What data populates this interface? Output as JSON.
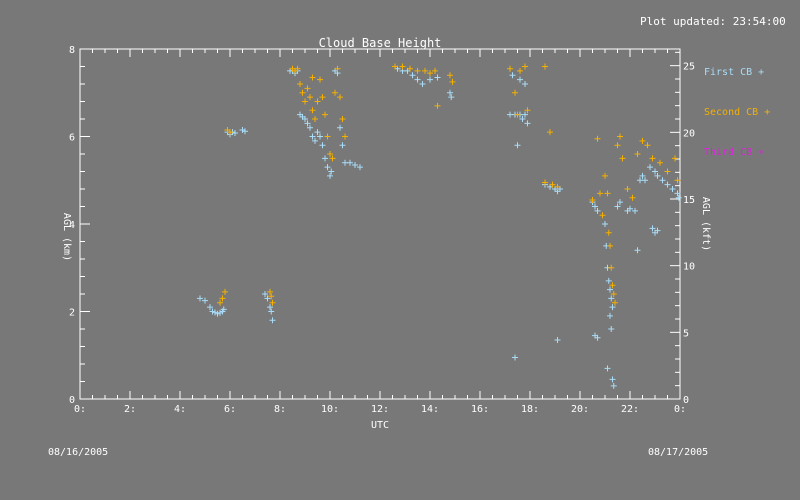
{
  "plot_updated": "Plot updated: 23:54:00",
  "date_left": "08/16/2005",
  "date_right": "08/17/2005",
  "colors": {
    "background": "#787878",
    "axis": "#ffffff",
    "first_cb": "#a8dcf8",
    "second_cb": "#f5b000",
    "third_cb": "#e020e0"
  },
  "chart_data": {
    "type": "scatter",
    "title": "Cloud Base Height",
    "xlabel": "UTC",
    "ylabel_left": "AGL (km)",
    "ylabel_right": "AGL (kft)",
    "xlim": [
      0,
      24
    ],
    "ylim_left": [
      0,
      8
    ],
    "ylim_right_kft": [
      0,
      26.25
    ],
    "x_ticks": [
      0,
      2,
      4,
      6,
      8,
      10,
      12,
      14,
      16,
      18,
      20,
      22,
      24
    ],
    "x_tick_labels": [
      "0:",
      "2:",
      "4:",
      "6:",
      "8:",
      "10:",
      "12:",
      "14:",
      "16:",
      "18:",
      "20:",
      "22:",
      "0:"
    ],
    "y_left_ticks": [
      0,
      2,
      4,
      6,
      8
    ],
    "y_left_tick_labels": [
      "0",
      "2",
      "4",
      "6",
      "8"
    ],
    "y_right_ticks": [
      0,
      5,
      10,
      15,
      20,
      25
    ],
    "y_right_tick_labels": [
      "0",
      "5",
      "10",
      "15",
      "20",
      "25"
    ],
    "legend_position": "right",
    "marker": "+",
    "series": [
      {
        "name": "First CB",
        "legend_label": "First CB +",
        "color": "#a8dcf8",
        "points": [
          [
            4.8,
            2.3
          ],
          [
            5.0,
            2.25
          ],
          [
            5.2,
            2.1
          ],
          [
            5.3,
            2.0
          ],
          [
            5.4,
            1.98
          ],
          [
            5.5,
            1.95
          ],
          [
            5.6,
            1.97
          ],
          [
            5.7,
            2.0
          ],
          [
            5.75,
            2.05
          ],
          [
            5.9,
            6.1
          ],
          [
            6.0,
            6.05
          ],
          [
            6.1,
            6.1
          ],
          [
            6.2,
            6.08
          ],
          [
            6.5,
            6.15
          ],
          [
            6.6,
            6.12
          ],
          [
            7.4,
            2.4
          ],
          [
            7.5,
            2.3
          ],
          [
            7.6,
            2.1
          ],
          [
            7.65,
            2.0
          ],
          [
            7.7,
            1.8
          ],
          [
            8.4,
            7.5
          ],
          [
            8.5,
            7.5
          ],
          [
            8.6,
            7.45
          ],
          [
            8.7,
            7.5
          ],
          [
            8.8,
            6.5
          ],
          [
            8.9,
            6.45
          ],
          [
            9.0,
            6.4
          ],
          [
            9.1,
            6.3
          ],
          [
            9.2,
            6.2
          ],
          [
            9.3,
            6.0
          ],
          [
            9.4,
            5.9
          ],
          [
            9.5,
            6.1
          ],
          [
            9.6,
            6.0
          ],
          [
            9.7,
            5.8
          ],
          [
            9.8,
            5.5
          ],
          [
            9.9,
            5.3
          ],
          [
            10.0,
            5.1
          ],
          [
            10.05,
            5.2
          ],
          [
            10.2,
            7.5
          ],
          [
            10.3,
            7.45
          ],
          [
            10.4,
            6.2
          ],
          [
            10.5,
            5.8
          ],
          [
            10.6,
            5.4
          ],
          [
            10.8,
            5.4
          ],
          [
            11.0,
            5.35
          ],
          [
            11.2,
            5.3
          ],
          [
            12.7,
            7.55
          ],
          [
            12.9,
            7.5
          ],
          [
            13.1,
            7.5
          ],
          [
            13.3,
            7.4
          ],
          [
            13.5,
            7.3
          ],
          [
            13.7,
            7.2
          ],
          [
            14.0,
            7.3
          ],
          [
            14.3,
            7.35
          ],
          [
            14.8,
            7.0
          ],
          [
            14.85,
            6.9
          ],
          [
            17.2,
            6.5
          ],
          [
            17.4,
            6.5
          ],
          [
            17.6,
            6.5
          ],
          [
            17.7,
            6.4
          ],
          [
            17.8,
            6.5
          ],
          [
            17.9,
            6.3
          ],
          [
            17.5,
            5.8
          ],
          [
            17.3,
            7.4
          ],
          [
            17.6,
            7.3
          ],
          [
            17.8,
            7.2
          ],
          [
            17.4,
            0.95
          ],
          [
            18.6,
            4.9
          ],
          [
            18.8,
            4.85
          ],
          [
            19.0,
            4.8
          ],
          [
            19.1,
            4.75
          ],
          [
            19.2,
            4.8
          ],
          [
            19.1,
            1.35
          ],
          [
            20.5,
            4.5
          ],
          [
            20.6,
            4.4
          ],
          [
            20.7,
            4.3
          ],
          [
            20.6,
            1.45
          ],
          [
            20.7,
            1.4
          ],
          [
            21.0,
            4.0
          ],
          [
            21.05,
            3.5
          ],
          [
            21.1,
            3.0
          ],
          [
            21.15,
            2.7
          ],
          [
            21.2,
            2.5
          ],
          [
            21.25,
            2.3
          ],
          [
            21.3,
            2.1
          ],
          [
            21.2,
            1.9
          ],
          [
            21.25,
            1.6
          ],
          [
            21.1,
            0.7
          ],
          [
            21.3,
            0.45
          ],
          [
            21.35,
            0.3
          ],
          [
            21.5,
            4.4
          ],
          [
            21.6,
            4.5
          ],
          [
            21.9,
            4.3
          ],
          [
            22.0,
            4.35
          ],
          [
            22.2,
            4.3
          ],
          [
            22.3,
            3.4
          ],
          [
            22.4,
            5.0
          ],
          [
            22.5,
            5.1
          ],
          [
            22.6,
            5.0
          ],
          [
            22.8,
            5.3
          ],
          [
            23.0,
            5.2
          ],
          [
            23.1,
            5.1
          ],
          [
            23.3,
            5.0
          ],
          [
            23.5,
            4.9
          ],
          [
            23.7,
            4.8
          ],
          [
            23.9,
            4.7
          ],
          [
            23.95,
            4.6
          ],
          [
            22.9,
            3.9
          ],
          [
            23.0,
            3.8
          ],
          [
            23.1,
            3.85
          ]
        ]
      },
      {
        "name": "Second CB",
        "legend_label": "Second CB +",
        "color": "#f5b000",
        "points": [
          [
            5.6,
            2.2
          ],
          [
            5.7,
            2.3
          ],
          [
            5.8,
            2.45
          ],
          [
            5.9,
            6.15
          ],
          [
            6.0,
            6.1
          ],
          [
            7.6,
            2.45
          ],
          [
            7.7,
            2.2
          ],
          [
            7.65,
            2.35
          ],
          [
            8.5,
            7.55
          ],
          [
            8.6,
            7.5
          ],
          [
            8.7,
            7.55
          ],
          [
            8.8,
            7.2
          ],
          [
            8.9,
            7.0
          ],
          [
            9.0,
            6.8
          ],
          [
            9.1,
            7.1
          ],
          [
            9.2,
            6.9
          ],
          [
            9.3,
            6.6
          ],
          [
            9.4,
            6.4
          ],
          [
            9.5,
            6.8
          ],
          [
            9.6,
            7.3
          ],
          [
            9.7,
            6.9
          ],
          [
            9.8,
            6.5
          ],
          [
            9.9,
            6.0
          ],
          [
            10.0,
            5.6
          ],
          [
            10.1,
            5.5
          ],
          [
            10.3,
            7.55
          ],
          [
            10.4,
            6.9
          ],
          [
            10.5,
            6.4
          ],
          [
            10.6,
            6.0
          ],
          [
            10.2,
            7.0
          ],
          [
            9.3,
            7.35
          ],
          [
            12.6,
            7.6
          ],
          [
            12.9,
            7.6
          ],
          [
            13.2,
            7.55
          ],
          [
            13.5,
            7.5
          ],
          [
            13.8,
            7.5
          ],
          [
            14.0,
            7.45
          ],
          [
            14.2,
            7.5
          ],
          [
            14.3,
            6.7
          ],
          [
            14.8,
            7.4
          ],
          [
            14.9,
            7.25
          ],
          [
            17.2,
            7.55
          ],
          [
            17.4,
            7.0
          ],
          [
            17.6,
            7.5
          ],
          [
            17.8,
            7.6
          ],
          [
            17.9,
            6.6
          ],
          [
            17.5,
            6.5
          ],
          [
            18.6,
            7.6
          ],
          [
            18.8,
            6.1
          ],
          [
            18.6,
            4.95
          ],
          [
            18.9,
            4.9
          ],
          [
            19.1,
            4.85
          ],
          [
            20.7,
            5.95
          ],
          [
            20.8,
            4.7
          ],
          [
            20.5,
            4.55
          ],
          [
            20.9,
            4.2
          ],
          [
            21.0,
            5.1
          ],
          [
            21.1,
            4.7
          ],
          [
            21.15,
            3.8
          ],
          [
            21.2,
            3.5
          ],
          [
            21.25,
            3.0
          ],
          [
            21.3,
            2.6
          ],
          [
            21.35,
            2.4
          ],
          [
            21.4,
            2.2
          ],
          [
            21.6,
            6.0
          ],
          [
            21.5,
            5.8
          ],
          [
            21.7,
            5.5
          ],
          [
            21.9,
            4.8
          ],
          [
            22.1,
            4.6
          ],
          [
            22.3,
            5.6
          ],
          [
            22.5,
            5.9
          ],
          [
            22.7,
            5.8
          ],
          [
            22.9,
            5.5
          ],
          [
            23.2,
            5.4
          ],
          [
            23.5,
            5.2
          ],
          [
            23.8,
            5.5
          ],
          [
            23.9,
            5.0
          ]
        ]
      },
      {
        "name": "Third CB",
        "legend_label": "Third CB +",
        "color": "#e020e0",
        "points": []
      }
    ]
  }
}
